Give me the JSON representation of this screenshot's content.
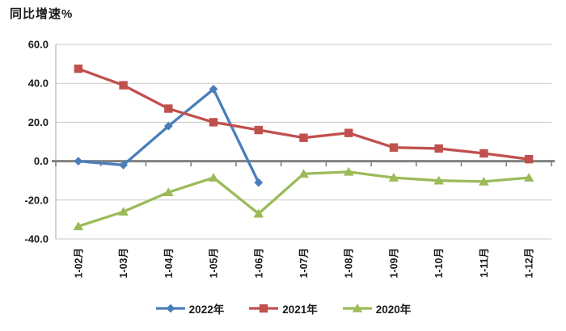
{
  "chart_data": {
    "type": "line",
    "title": "同比增速%",
    "ylabel": "同比增速%",
    "categories": [
      "1-02月",
      "1-03月",
      "1-04月",
      "1-05月",
      "1-06月",
      "1-07月",
      "1-08月",
      "1-09月",
      "1-10月",
      "1-11月",
      "1-12月"
    ],
    "series": [
      {
        "name": "2022年",
        "color": "#4A7EBB",
        "marker": "diamond",
        "values": [
          0.0,
          -2.0,
          18.0,
          37.0,
          -11.0,
          null,
          null,
          null,
          null,
          null,
          null
        ]
      },
      {
        "name": "2021年",
        "color": "#C0504D",
        "marker": "square",
        "values": [
          47.5,
          39.0,
          27.0,
          20.0,
          16.0,
          12.0,
          14.5,
          7.0,
          6.5,
          4.0,
          1.0
        ]
      },
      {
        "name": "2020年",
        "color": "#9BBB59",
        "marker": "triangle",
        "values": [
          -33.5,
          -26.0,
          -16.0,
          -8.5,
          -27.0,
          -6.5,
          -5.5,
          -8.5,
          -10.0,
          -10.5,
          -8.5
        ]
      }
    ],
    "ylim": [
      -40,
      60
    ],
    "yticks": [
      60,
      40,
      20,
      0,
      -20,
      -40
    ],
    "ytick_labels": [
      "60.0",
      "40.0",
      "20.0",
      "0.0",
      "-20.0",
      "-40.0"
    ],
    "grid": true,
    "legend_position": "bottom",
    "colors": {
      "gridline": "#C8C8C8",
      "axis_line": "#A6A6A6",
      "zero_line": "#808080",
      "text": "#1a1a1a"
    }
  }
}
